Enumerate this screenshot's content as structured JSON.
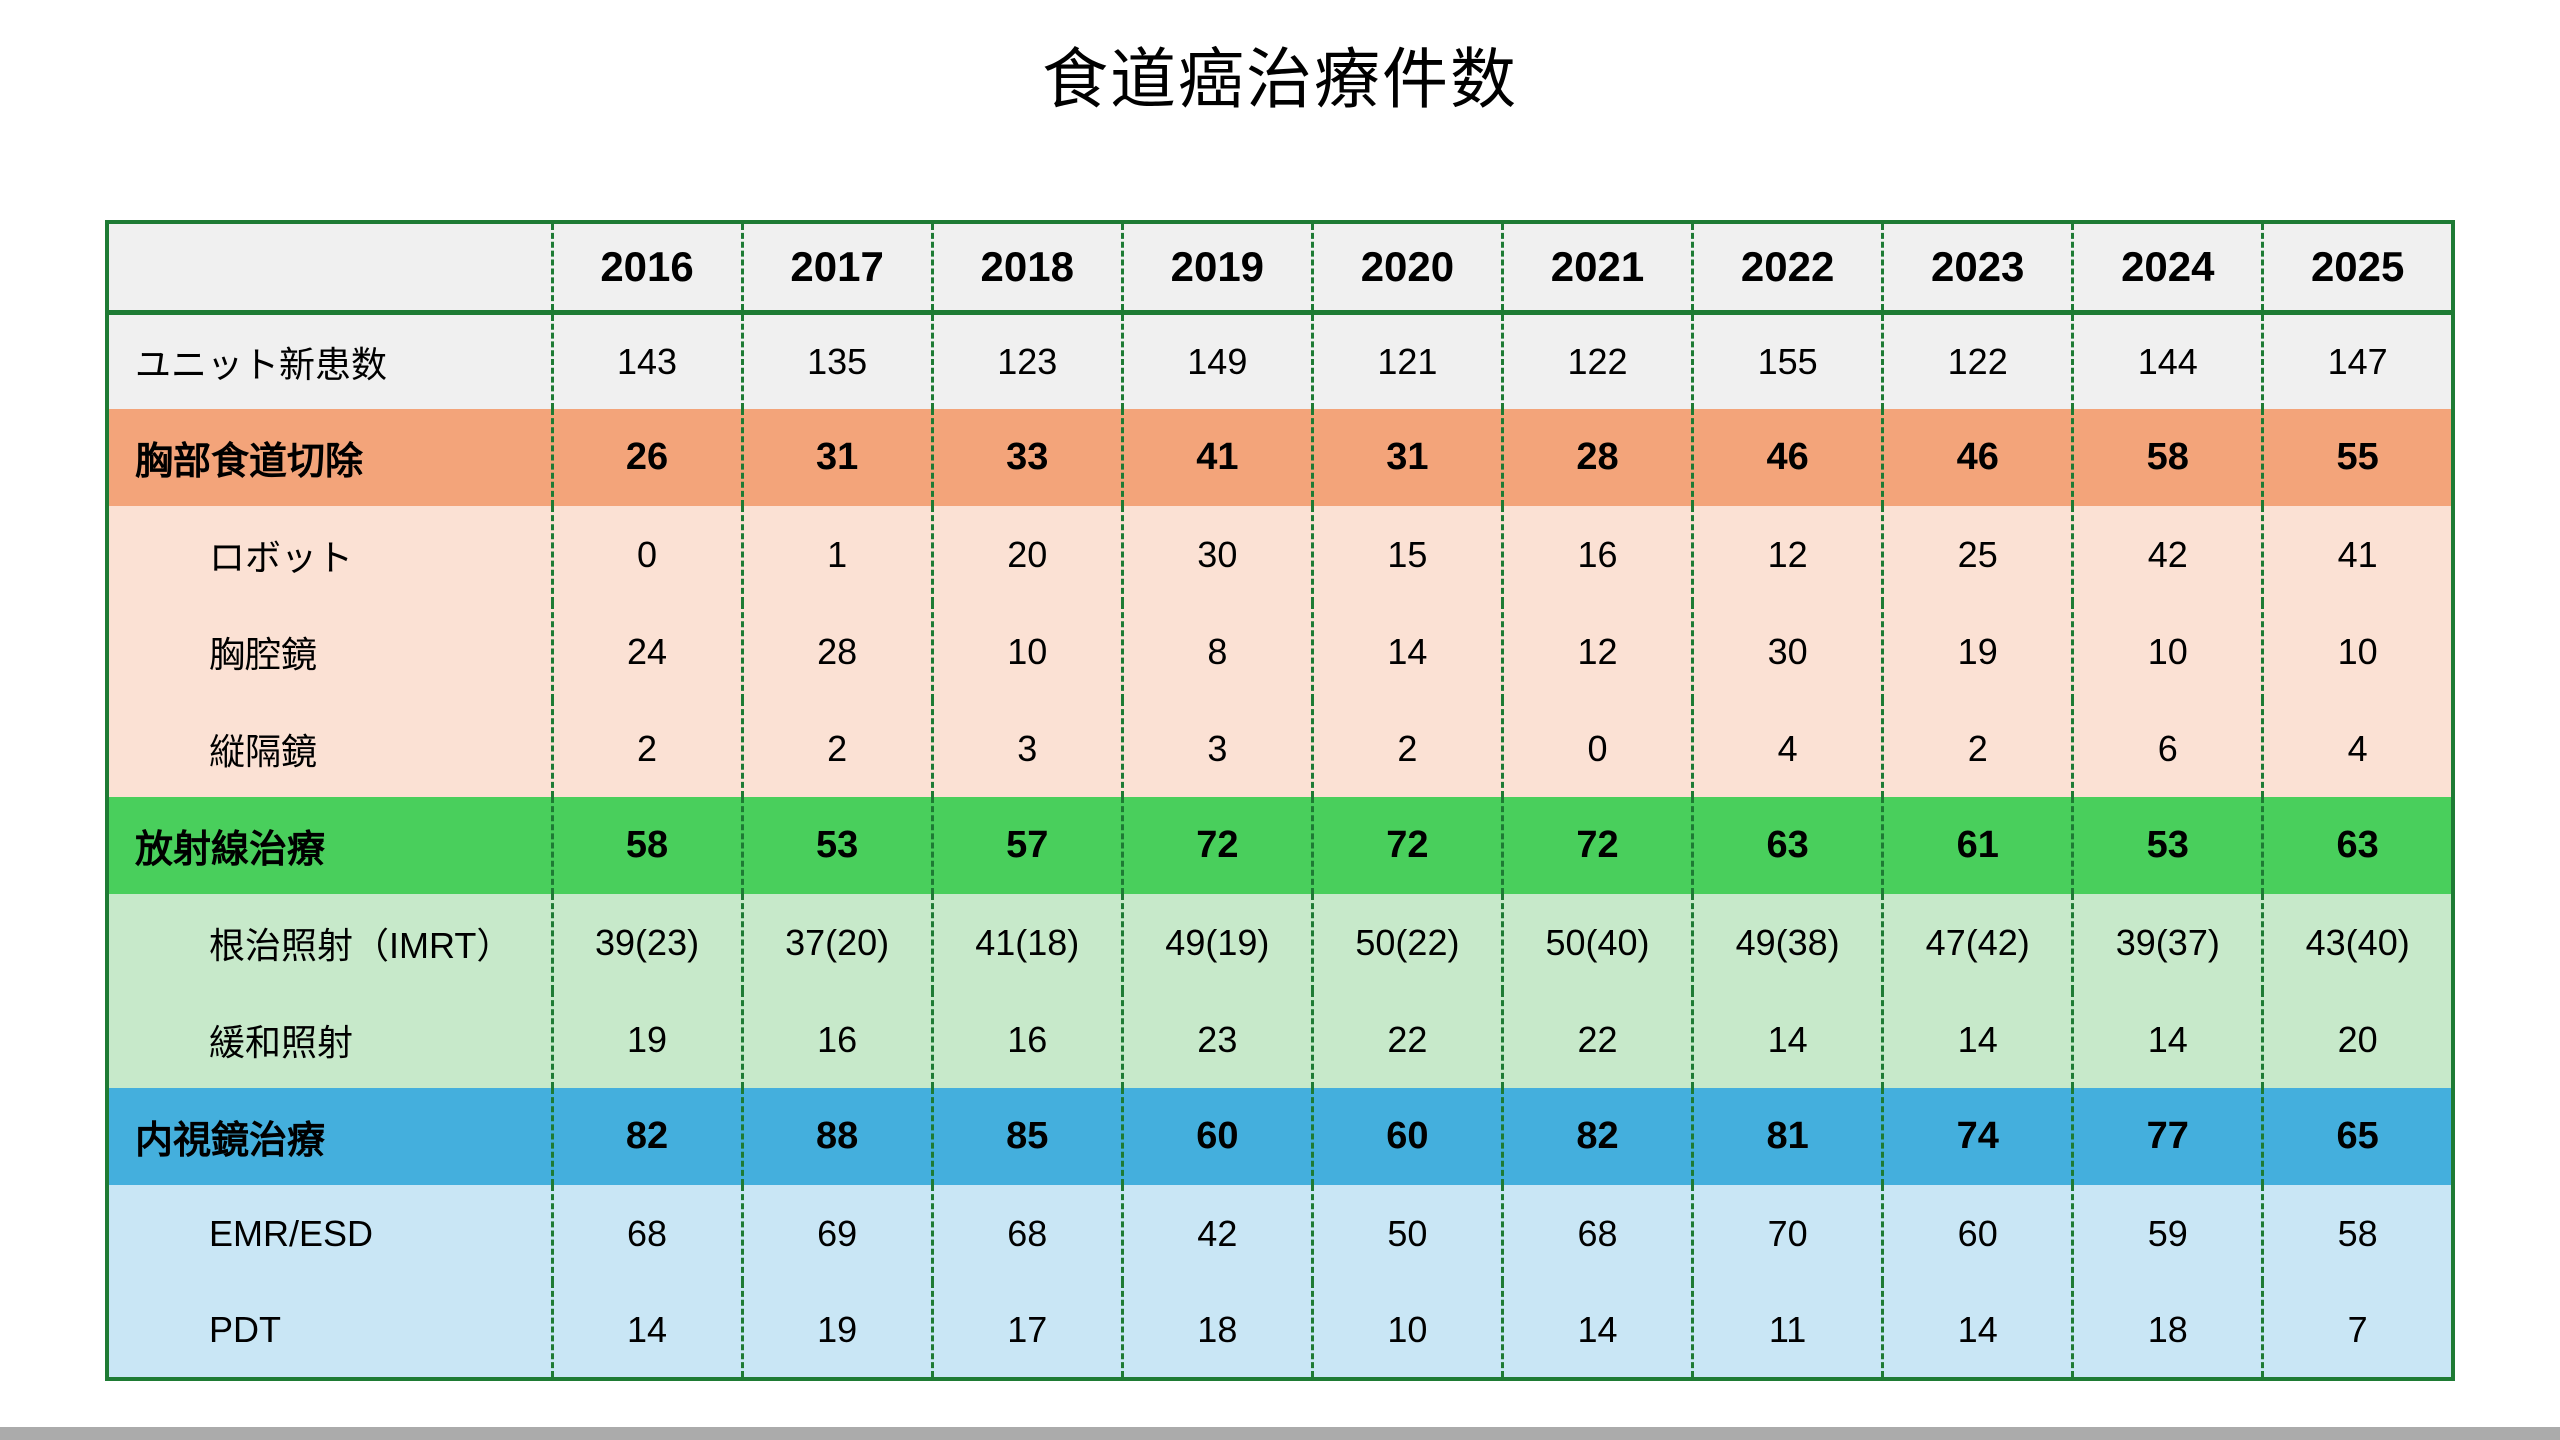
{
  "title": "食道癌治療件数",
  "colors": {
    "border_green": "#1E7B34",
    "header_bg": "#F0F0F0",
    "plain_row_bg": "#F0F0F0",
    "surgery_bg": "#F3A47A",
    "surgery_sub_bg": "#FBE1D4",
    "radiation_bg": "#49CF5C",
    "radiation_sub_bg": "#C7E9CA",
    "endoscopy_bg": "#44AFDD",
    "endoscopy_sub_bg": "#C9E6F5",
    "bottom_bar": "#ABABAB"
  },
  "chart_data": {
    "type": "table",
    "title": "食道癌治療件数",
    "columns": [
      "",
      "2016",
      "2017",
      "2018",
      "2019",
      "2020",
      "2021",
      "2022",
      "2023",
      "2024",
      "2025"
    ],
    "rows": [
      {
        "label": "ユニット新患数",
        "style": "gray",
        "indent": 0,
        "bold": false,
        "values": [
          "143",
          "135",
          "123",
          "149",
          "121",
          "122",
          "155",
          "122",
          "144",
          "147"
        ]
      },
      {
        "label": "胸部食道切除",
        "style": "orange",
        "indent": 0,
        "bold": true,
        "values": [
          "26",
          "31",
          "33",
          "41",
          "31",
          "28",
          "46",
          "46",
          "58",
          "55"
        ]
      },
      {
        "label": "ロボット",
        "style": "orange_light",
        "indent": 1,
        "bold": false,
        "values": [
          "0",
          "1",
          "20",
          "30",
          "15",
          "16",
          "12",
          "25",
          "42",
          "41"
        ]
      },
      {
        "label": "胸腔鏡",
        "style": "orange_light",
        "indent": 1,
        "bold": false,
        "values": [
          "24",
          "28",
          "10",
          "8",
          "14",
          "12",
          "30",
          "19",
          "10",
          "10"
        ]
      },
      {
        "label": "縦隔鏡",
        "style": "orange_light",
        "indent": 1,
        "bold": false,
        "values": [
          "2",
          "2",
          "3",
          "3",
          "2",
          "0",
          "4",
          "2",
          "6",
          "4"
        ]
      },
      {
        "label": "放射線治療",
        "style": "green",
        "indent": 0,
        "bold": true,
        "values": [
          "58",
          "53",
          "57",
          "72",
          "72",
          "72",
          "63",
          "61",
          "53",
          "63"
        ]
      },
      {
        "label": "根治照射（IMRT）",
        "style": "green_light",
        "indent": 1,
        "bold": false,
        "values": [
          "39(23)",
          "37(20)",
          "41(18)",
          "49(19)",
          "50(22)",
          "50(40)",
          "49(38)",
          "47(42)",
          "39(37)",
          "43(40)"
        ]
      },
      {
        "label": "緩和照射",
        "style": "green_light",
        "indent": 1,
        "bold": false,
        "values": [
          "19",
          "16",
          "16",
          "23",
          "22",
          "22",
          "14",
          "14",
          "14",
          "20"
        ]
      },
      {
        "label": "内視鏡治療",
        "style": "blue",
        "indent": 0,
        "bold": true,
        "values": [
          "82",
          "88",
          "85",
          "60",
          "60",
          "82",
          "81",
          "74",
          "77",
          "65"
        ]
      },
      {
        "label": "EMR/ESD",
        "style": "blue_light",
        "indent": 1,
        "bold": false,
        "values": [
          "68",
          "69",
          "68",
          "42",
          "50",
          "68",
          "70",
          "60",
          "59",
          "58"
        ]
      },
      {
        "label": "PDT",
        "style": "blue_light",
        "indent": 1,
        "bold": false,
        "values": [
          "14",
          "19",
          "17",
          "18",
          "10",
          "14",
          "11",
          "14",
          "18",
          "7"
        ]
      }
    ]
  }
}
